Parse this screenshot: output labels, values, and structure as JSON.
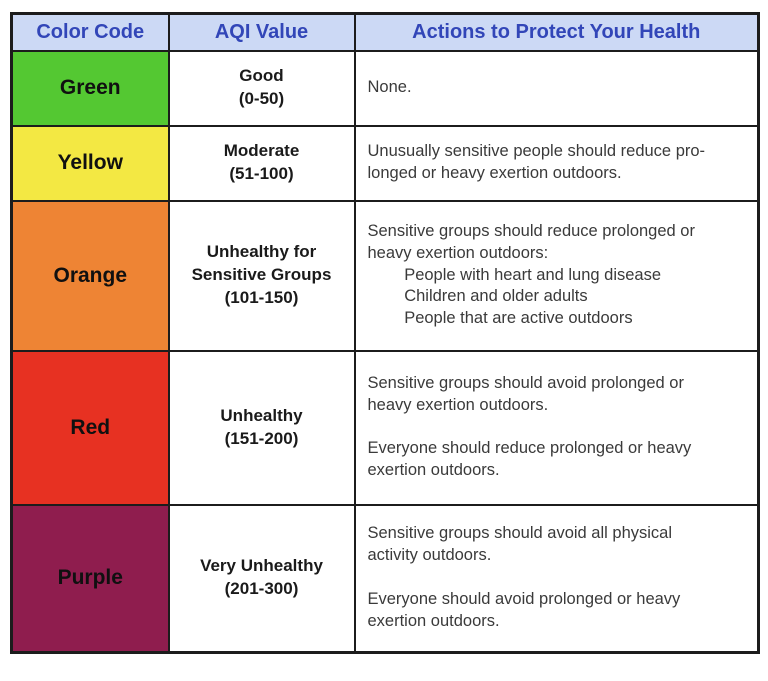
{
  "header": {
    "color_code": "Color Code",
    "aqi_value": "AQI Value",
    "actions": "Actions to Protect Your Health"
  },
  "colors": {
    "header_bg": "#ccd9f5",
    "header_text": "#3246b8",
    "border": "#1c1c1c",
    "green": "#54c832",
    "yellow": "#f3e843",
    "orange": "#ee8434",
    "red": "#e73122",
    "purple": "#8f1d4e"
  },
  "rows": [
    {
      "color_name": "Green",
      "color_hex": "#54c832",
      "aqi_label": "Good\n(0-50)",
      "actions": "None."
    },
    {
      "color_name": "Yellow",
      "color_hex": "#f3e843",
      "aqi_label": "Moderate\n(51-100)",
      "actions": "Unusually sensitive people should reduce pro-\nlonged or heavy exertion outdoors."
    },
    {
      "color_name": "Orange",
      "color_hex": "#ee8434",
      "aqi_label": "Unhealthy for\nSensitive Groups\n(101-150)",
      "actions": "Sensitive groups should reduce prolonged or\nheavy exertion outdoors:\n        People with heart and lung disease\n        Children and older adults\n        People that are active outdoors"
    },
    {
      "color_name": "Red",
      "color_hex": "#e73122",
      "aqi_label": "Unhealthy\n(151-200)",
      "actions": "Sensitive groups should avoid prolonged or\nheavy exertion outdoors.\n\nEveryone should reduce prolonged or heavy\nexertion outdoors."
    },
    {
      "color_name": "Purple",
      "color_hex": "#8f1d4e",
      "aqi_label": "Very Unhealthy\n(201-300)",
      "actions": "Sensitive groups should avoid all physical\nactivity outdoors.\n\nEveryone should avoid prolonged or heavy\nexertion outdoors."
    }
  ]
}
